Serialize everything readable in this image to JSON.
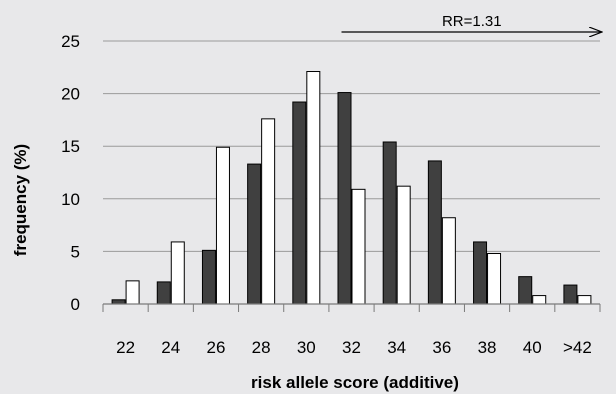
{
  "chart_data": {
    "type": "bar",
    "title": "",
    "xlabel": "risk allele score (additive)",
    "ylabel": "frequency (%)",
    "ylim": [
      0,
      25
    ],
    "yticks": [
      0,
      5,
      10,
      15,
      20,
      25
    ],
    "grid": "horizontal",
    "categories": [
      "22",
      "24",
      "26",
      "28",
      "30",
      "32",
      "34",
      "36",
      "38",
      "40",
      ">42"
    ],
    "series": [
      {
        "color": "#404040",
        "values": [
          0.4,
          2.1,
          5.1,
          13.3,
          19.2,
          20.1,
          15.4,
          13.6,
          5.9,
          2.6,
          1.8
        ]
      },
      {
        "color": "#ffffff",
        "values": [
          2.2,
          5.9,
          14.9,
          17.6,
          22.1,
          10.9,
          11.2,
          8.2,
          4.8,
          0.8,
          0.8
        ]
      }
    ],
    "annotation": {
      "text": "RR=1.31",
      "arrow": "right",
      "from_category": "32"
    }
  }
}
